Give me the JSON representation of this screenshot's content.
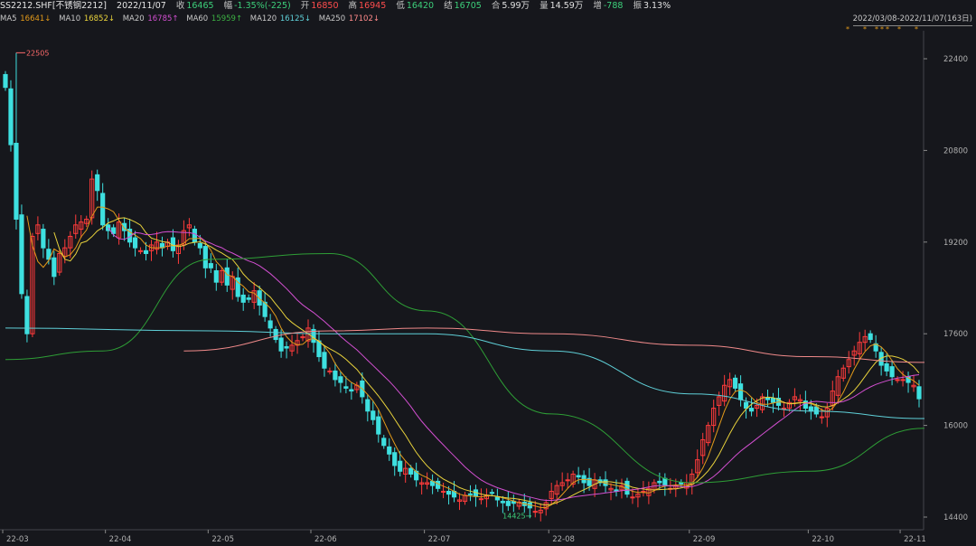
{
  "header": {
    "symbol": "SS2212.SHF[不锈钢2212]",
    "date": "2022/11/07",
    "close_label": "收",
    "close_value": "16465",
    "amp_label": "幅",
    "amp_value": "-1.35%(-225)",
    "open_label": "开",
    "open_value": "16850",
    "high_label": "高",
    "high_value": "16945",
    "low_label": "低",
    "low_value": "16420",
    "settle_label": "结",
    "settle_value": "16705",
    "oi_label": "合",
    "oi_value": "5.99万",
    "vol_label": "量",
    "vol_value": "14.59万",
    "chg_label": "增",
    "chg_value": "-788",
    "swing_label": "振",
    "swing_value": "3.13%"
  },
  "ma_legend": [
    {
      "name": "MA5",
      "value": "16641↓",
      "color": "#e6e6e6",
      "value_color": "#e39a1a"
    },
    {
      "name": "MA10",
      "value": "16852↓",
      "color": "#e6e6e6",
      "value_color": "#e8d23c"
    },
    {
      "name": "MA20",
      "value": "16785↑",
      "color": "#e6e6e6",
      "value_color": "#d24fd0"
    },
    {
      "name": "MA60",
      "value": "15959↑",
      "color": "#e6e6e6",
      "value_color": "#3cb043"
    },
    {
      "name": "MA120",
      "value": "16125↓",
      "color": "#e6e6e6",
      "value_color": "#5fd0d8"
    },
    {
      "name": "MA250",
      "value": "17102↓",
      "color": "#e6e6e6",
      "value_color": "#ff8a8a"
    }
  ],
  "range_label": "2022/03/08-2022/11/07(163日)",
  "stars": [
    "*",
    "*",
    "*",
    "*",
    "*",
    "*",
    "*"
  ],
  "colors": {
    "up": "#ff3b3b",
    "down": "#3ee0e0",
    "ma5": "#e39a1a",
    "ma10": "#e8d23c",
    "ma20": "#d24fd0",
    "ma60": "#2e9e36",
    "ma120": "#5fd0d8",
    "ma250": "#f08a8a",
    "grid": "#2a2c33",
    "axis": "#b0b0b0"
  },
  "chart_data": {
    "type": "candlestick",
    "ylim": [
      14400,
      22700
    ],
    "yticks": [
      "22400",
      "20800",
      "19200",
      "17600",
      "16000",
      "14400"
    ],
    "ytick_values": [
      22400,
      20800,
      19200,
      17600,
      16000,
      14400
    ],
    "xticks": [
      "22-03",
      "22-04",
      "22-05",
      "22-06",
      "22-07",
      "22-08",
      "22-09",
      "22-10",
      "22-11"
    ],
    "xtick_index": [
      0,
      19,
      38,
      57,
      78,
      101,
      127,
      149,
      166
    ],
    "n_bars": 170,
    "annotations": [
      {
        "text": "22505",
        "bar": 2,
        "value": 22505
      },
      {
        "text": "14425",
        "bar": 100,
        "value": 14425
      }
    ],
    "close_series": [
      21900,
      20900,
      19600,
      18300,
      17600,
      19300,
      19500,
      19100,
      18900,
      18600,
      19000,
      19100,
      19300,
      19500,
      19550,
      19600,
      20300,
      20100,
      19500,
      19400,
      19350,
      19550,
      19400,
      19200,
      19100,
      19050,
      19000,
      19150,
      19200,
      19100,
      19200,
      19050,
      19150,
      19400,
      19500,
      19200,
      19100,
      18750,
      18750,
      18500,
      18700,
      18450,
      18600,
      18250,
      18150,
      18200,
      18350,
      18100,
      17900,
      17700,
      17500,
      17300,
      17350,
      17400,
      17480,
      17550,
      17700,
      17450,
      17200,
      17000,
      16950,
      16800,
      16750,
      16650,
      16600,
      16700,
      16500,
      16250,
      16100,
      15850,
      15650,
      15500,
      15300,
      15200,
      15250,
      15150,
      15050,
      15000,
      15000,
      14950,
      14900,
      14850,
      14800,
      14750,
      14700,
      14780,
      14800,
      14760,
      14720,
      14780,
      14820,
      14700,
      14650,
      14600,
      14640,
      14660,
      14600,
      14560,
      14500,
      14520,
      14650,
      14850,
      14950,
      15000,
      15050,
      15150,
      15100,
      15000,
      14950,
      15050,
      15000,
      14950,
      14900,
      14850,
      14950,
      14800,
      14750,
      14800,
      14850,
      14900,
      15000,
      15000,
      14950,
      14900,
      14950,
      14980,
      15000,
      15150,
      15400,
      15750,
      16000,
      16300,
      16500,
      16700,
      16800,
      16650,
      16450,
      16300,
      16250,
      16350,
      16500,
      16450,
      16400,
      16350,
      16300,
      16400,
      16500,
      16450,
      16300,
      16250,
      16200,
      16150,
      16300,
      16600,
      16850,
      17000,
      17150,
      17300,
      17450,
      17550,
      17500,
      17300,
      17050,
      16950,
      16850,
      16800,
      16800,
      16750,
      16700,
      16465
    ],
    "ma5_last": 16641,
    "ma10_last": 16852,
    "ma20_last": 16785,
    "ma60_last": 15959,
    "ma120_last": 16125,
    "ma250_last": 17102,
    "ma60_path": [
      [
        0,
        17150
      ],
      [
        18,
        17300
      ],
      [
        38,
        18900
      ],
      [
        60,
        19000
      ],
      [
        78,
        18000
      ],
      [
        101,
        16200
      ],
      [
        127,
        15000
      ],
      [
        149,
        15200
      ],
      [
        170,
        15950
      ]
    ],
    "ma120_path": [
      [
        0,
        17700
      ],
      [
        38,
        17650
      ],
      [
        60,
        17600
      ],
      [
        78,
        17600
      ],
      [
        101,
        17300
      ],
      [
        127,
        16550
      ],
      [
        149,
        16250
      ],
      [
        170,
        16120
      ]
    ],
    "ma250_path": [
      [
        33,
        17300
      ],
      [
        60,
        17650
      ],
      [
        78,
        17700
      ],
      [
        101,
        17600
      ],
      [
        127,
        17400
      ],
      [
        149,
        17200
      ],
      [
        170,
        17100
      ]
    ]
  }
}
